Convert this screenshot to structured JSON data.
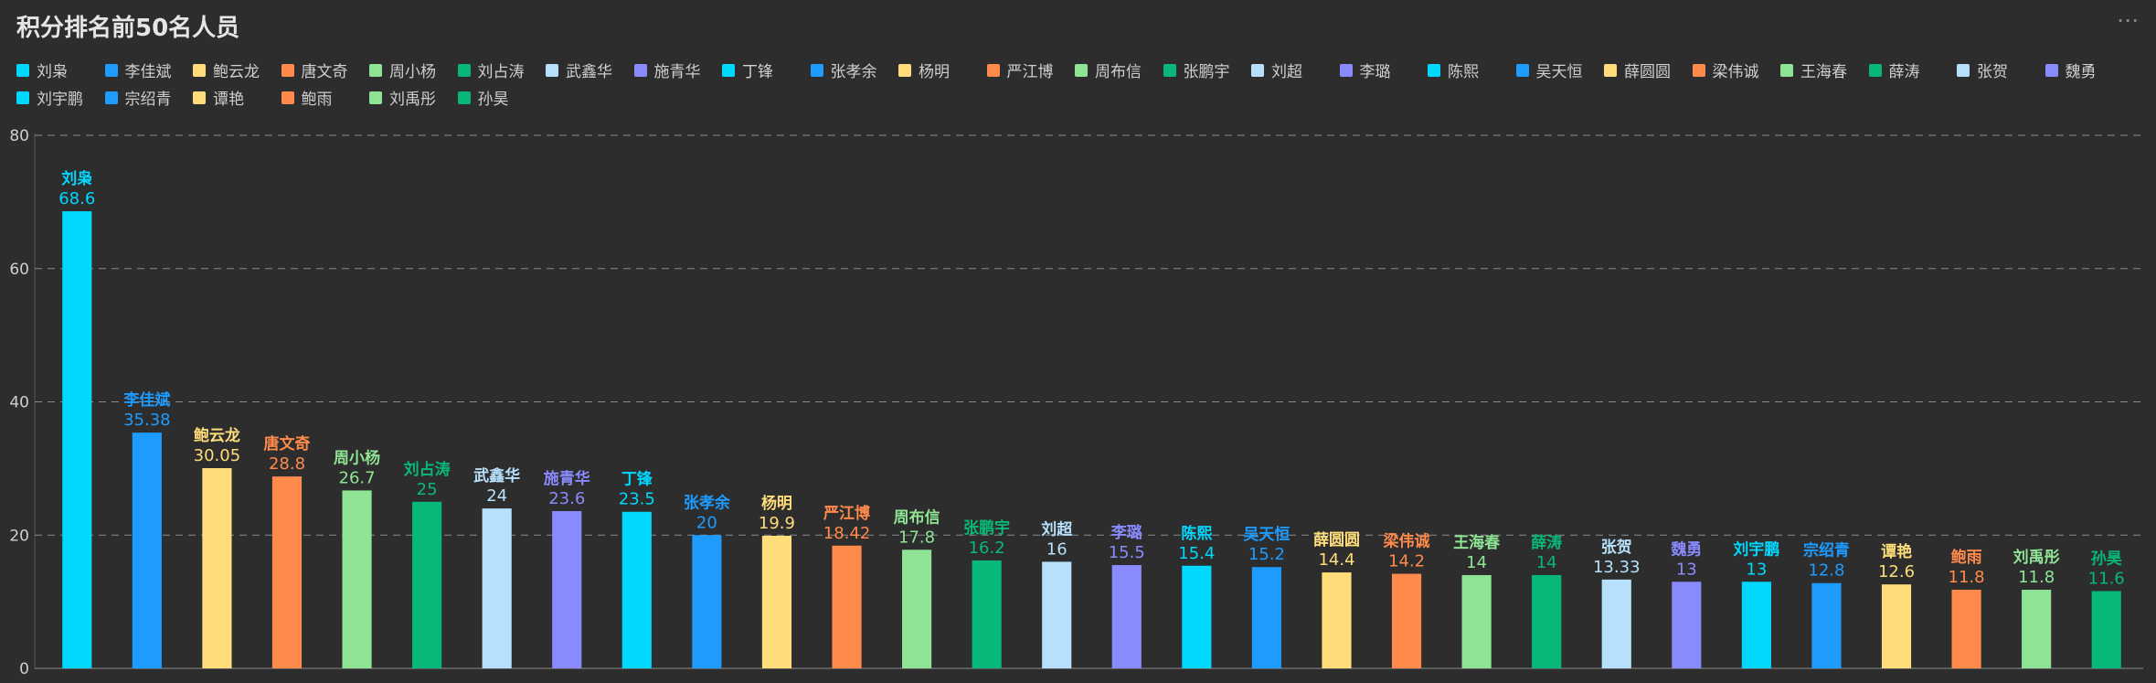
{
  "title": "积分排名前50名人员",
  "more_icon": "⋯",
  "chart_data": {
    "type": "bar",
    "title": "积分排名前50名人员",
    "xlabel": "",
    "ylabel": "",
    "ylim": [
      0,
      80
    ],
    "yticks": [
      "0",
      "20",
      "40",
      "60",
      "80"
    ],
    "grid": true,
    "legend_position": "top-left",
    "palette": [
      "#00d8ff",
      "#1e9bff",
      "#ffdd7a",
      "#ff8a4c",
      "#8ee494",
      "#08b878",
      "#b6e0fb",
      "#8a8aff"
    ],
    "categories": [
      "刘枭",
      "李佳斌",
      "鲍云龙",
      "唐文奇",
      "周小杨",
      "刘占涛",
      "武鑫华",
      "施青华",
      "丁锋",
      "张孝余",
      "杨明",
      "严江博",
      "周布信",
      "张鹏宇",
      "刘超",
      "李璐",
      "陈熙",
      "吴天恒",
      "薛圆圆",
      "梁伟诚",
      "王海春",
      "薛涛",
      "张贺",
      "魏勇",
      "刘宇鹏",
      "宗绍青",
      "谭艳",
      "鲍雨",
      "刘禹彤",
      "孙昊"
    ],
    "labels": [
      "68.6",
      "35.38",
      "30.05",
      "28.8",
      "26.7",
      "25",
      "24",
      "23.6",
      "23.5",
      "20",
      "19.9",
      "18.42",
      "17.8",
      "16.2",
      "16",
      "15.5",
      "15.4",
      "15.2",
      "14.4",
      "14.2",
      "14",
      "14",
      "13.33",
      "13",
      "13",
      "12.8",
      "12.6",
      "11.8",
      "11.8",
      "11.6"
    ],
    "values": [
      68.6,
      35.38,
      30.05,
      28.8,
      26.7,
      25,
      24,
      23.6,
      23.5,
      20,
      19.9,
      18.42,
      17.8,
      16.2,
      16,
      15.5,
      15.4,
      15.2,
      14.4,
      14.2,
      14,
      14,
      13.33,
      13,
      13,
      12.8,
      12.6,
      11.8,
      11.8,
      11.6
    ],
    "legend": [
      "刘枭",
      "李佳斌",
      "鲍云龙",
      "唐文奇",
      "周小杨",
      "刘占涛",
      "武鑫华",
      "施青华",
      "丁锋",
      "张孝余",
      "杨明",
      "严江博",
      "周布信",
      "张鹏宇",
      "刘超",
      "李璐",
      "陈熙",
      "吴天恒",
      "薛圆圆",
      "梁伟诚",
      "王海春",
      "薛涛",
      "张贺",
      "魏勇",
      "刘宇鹏",
      "宗绍青",
      "谭艳",
      "鲍雨",
      "刘禹彤",
      "孙昊"
    ]
  }
}
